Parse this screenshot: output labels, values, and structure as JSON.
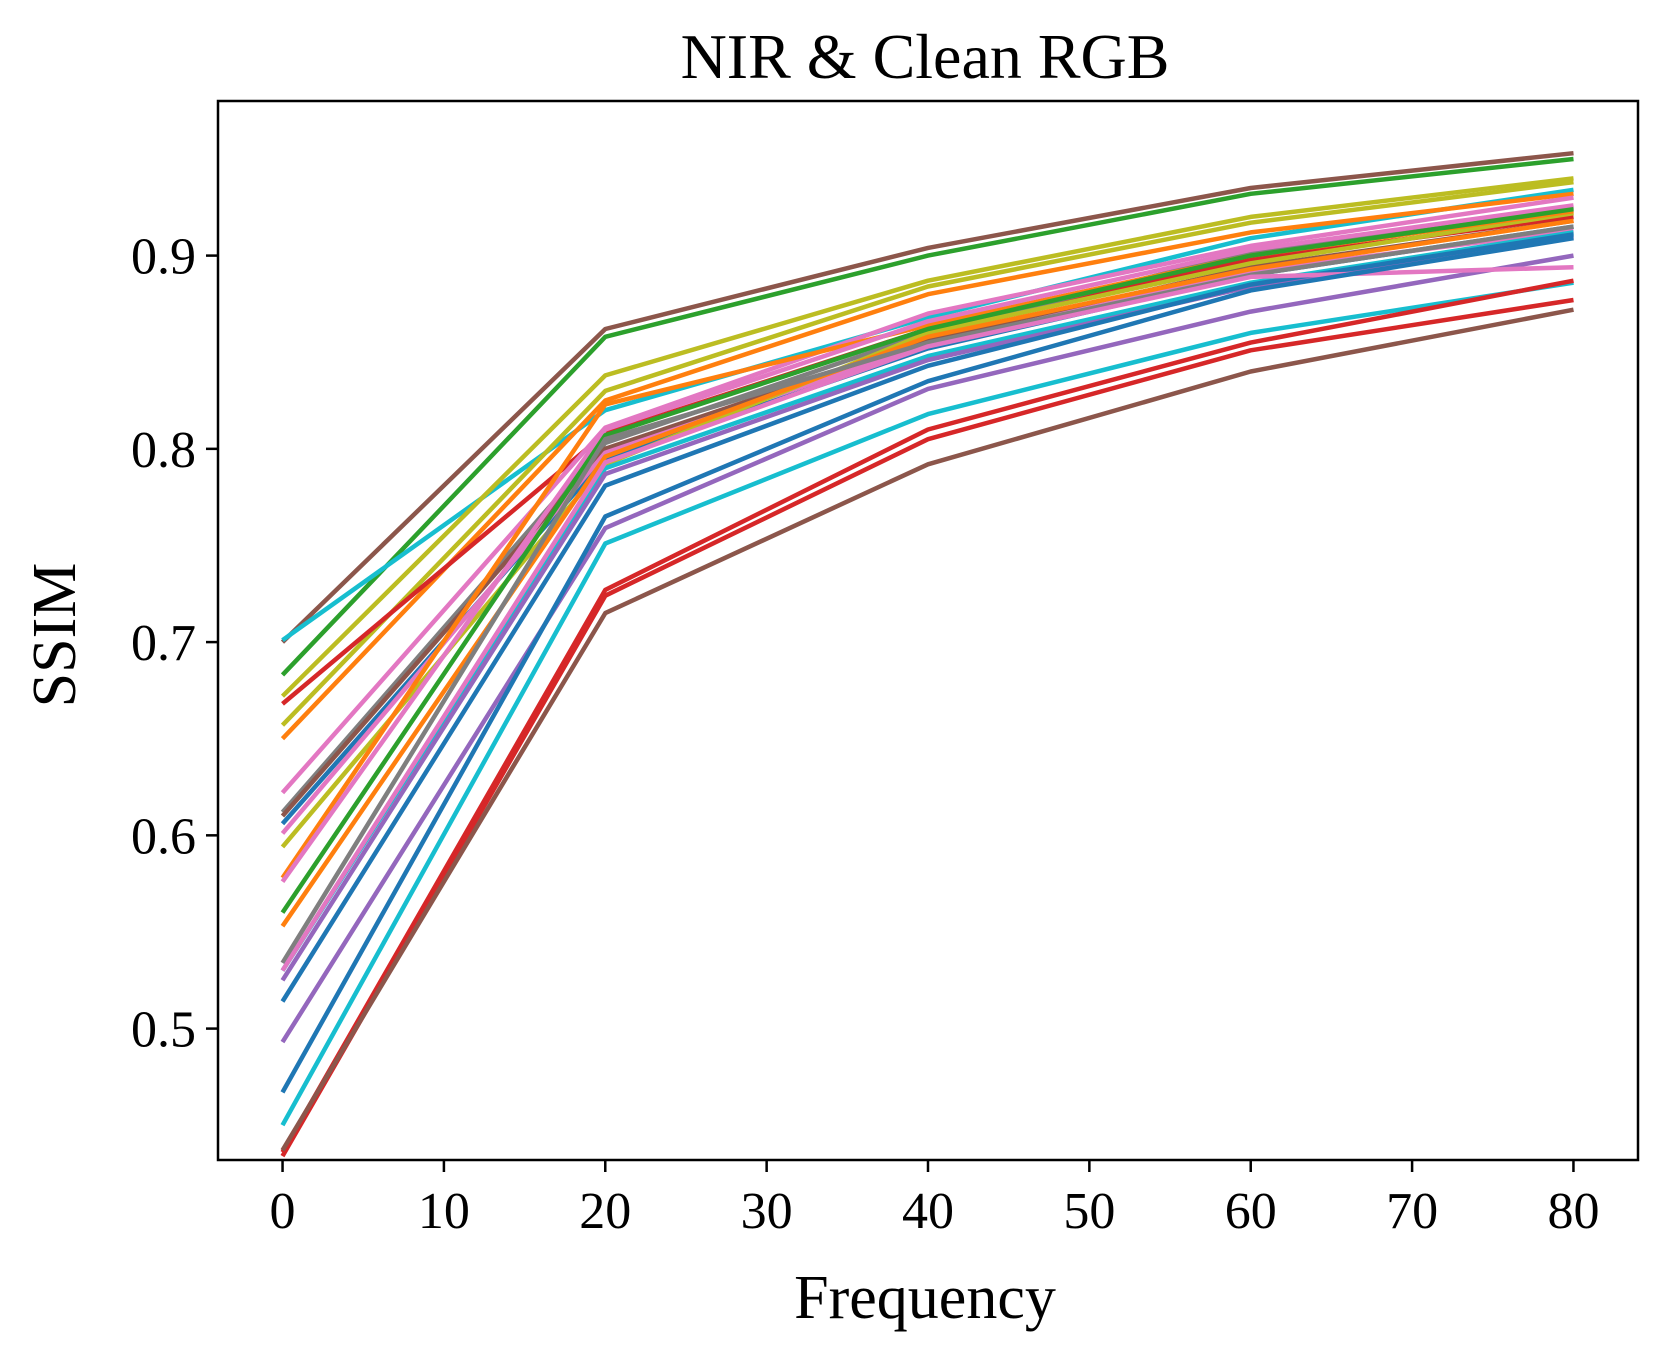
{
  "chart_data": {
    "type": "line",
    "title": "NIR & Clean RGB",
    "xlabel": "Frequency",
    "ylabel": "SSIM",
    "x": [
      0,
      20,
      40,
      60,
      80
    ],
    "xlim": [
      -4,
      84
    ],
    "ylim": [
      0.432,
      0.98
    ],
    "xticks": [
      0,
      10,
      20,
      30,
      40,
      50,
      60,
      70,
      80
    ],
    "xtick_labels": [
      "0",
      "10",
      "20",
      "30",
      "40",
      "50",
      "60",
      "70",
      "80"
    ],
    "yticks": [
      0.5,
      0.6,
      0.7,
      0.8,
      0.9
    ],
    "ytick_labels": [
      "0.5",
      "0.6",
      "0.7",
      "0.8",
      "0.9"
    ],
    "grid": false,
    "legend": false,
    "series": [
      {
        "color": "#8c564b",
        "values": [
          0.7,
          0.862,
          0.904,
          0.935,
          0.953
        ]
      },
      {
        "color": "#2ca02c",
        "values": [
          0.683,
          0.858,
          0.9,
          0.932,
          0.95
        ]
      },
      {
        "color": "#17becf",
        "values": [
          0.701,
          0.82,
          0.868,
          0.909,
          0.934
        ]
      },
      {
        "color": "#bcbd22",
        "values": [
          0.672,
          0.838,
          0.887,
          0.92,
          0.94
        ]
      },
      {
        "color": "#bcbd22",
        "values": [
          0.657,
          0.83,
          0.884,
          0.917,
          0.938
        ]
      },
      {
        "color": "#ff7f0e",
        "values": [
          0.65,
          0.825,
          0.88,
          0.912,
          0.932
        ]
      },
      {
        "color": "#d62728",
        "values": [
          0.668,
          0.808,
          0.862,
          0.898,
          0.92
        ]
      },
      {
        "color": "#e377c2",
        "values": [
          0.622,
          0.811,
          0.87,
          0.905,
          0.93
        ]
      },
      {
        "color": "#7f7f7f",
        "values": [
          0.612,
          0.803,
          0.86,
          0.902,
          0.925
        ]
      },
      {
        "color": "#8c564b",
        "values": [
          0.61,
          0.8,
          0.856,
          0.894,
          0.918
        ]
      },
      {
        "color": "#1f77b4",
        "values": [
          0.606,
          0.795,
          0.852,
          0.89,
          0.915
        ]
      },
      {
        "color": "#e377c2",
        "values": [
          0.601,
          0.798,
          0.854,
          0.892,
          0.913
        ]
      },
      {
        "color": "#bcbd22",
        "values": [
          0.594,
          0.792,
          0.86,
          0.896,
          0.922
        ]
      },
      {
        "color": "#ff7f0e",
        "values": [
          0.578,
          0.823,
          0.864,
          0.9,
          0.923
        ]
      },
      {
        "color": "#e377c2",
        "values": [
          0.576,
          0.81,
          0.866,
          0.903,
          0.926
        ]
      },
      {
        "color": "#2ca02c",
        "values": [
          0.56,
          0.807,
          0.862,
          0.9,
          0.924
        ]
      },
      {
        "color": "#ff7f0e",
        "values": [
          0.553,
          0.796,
          0.858,
          0.893,
          0.918
        ]
      },
      {
        "color": "#7f7f7f",
        "values": [
          0.534,
          0.805,
          0.855,
          0.89,
          0.915
        ]
      },
      {
        "color": "#17becf",
        "values": [
          0.53,
          0.79,
          0.848,
          0.886,
          0.912
        ]
      },
      {
        "color": "#9467bd",
        "values": [
          0.525,
          0.787,
          0.846,
          0.884,
          0.91
        ]
      },
      {
        "color": "#1f77b4",
        "values": [
          0.514,
          0.781,
          0.843,
          0.885,
          0.911
        ]
      },
      {
        "color": "#9467bd",
        "values": [
          0.493,
          0.759,
          0.831,
          0.871,
          0.9
        ]
      },
      {
        "color": "#e377c2",
        "values": [
          0.53,
          0.793,
          0.853,
          0.889,
          0.894
        ]
      },
      {
        "color": "#1f77b4",
        "values": [
          0.467,
          0.765,
          0.835,
          0.882,
          0.909
        ]
      },
      {
        "color": "#17becf",
        "values": [
          0.45,
          0.751,
          0.818,
          0.86,
          0.886
        ]
      },
      {
        "color": "#d62728",
        "values": [
          0.436,
          0.727,
          0.81,
          0.855,
          0.887
        ]
      },
      {
        "color": "#d62728",
        "values": [
          0.434,
          0.724,
          0.805,
          0.851,
          0.877
        ]
      },
      {
        "color": "#8c564b",
        "values": [
          0.437,
          0.715,
          0.792,
          0.84,
          0.872
        ]
      }
    ]
  }
}
